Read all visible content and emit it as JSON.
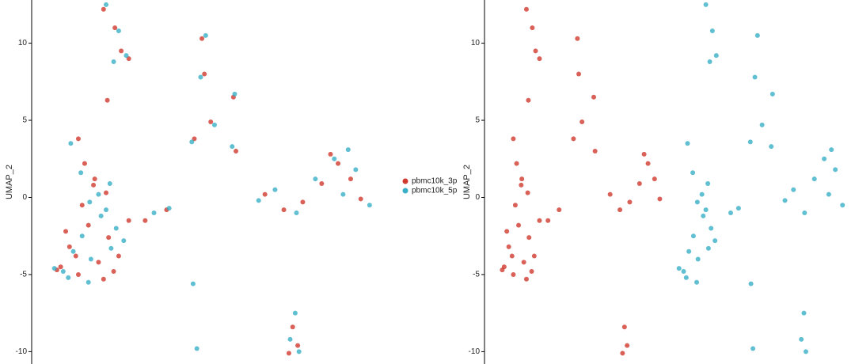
{
  "chart_data": {
    "type": "scatter",
    "y_label": "UMAP_2",
    "ylim": [
      -10.8,
      12.8
    ],
    "yticks": [
      -10,
      -5,
      0,
      5,
      10
    ],
    "xlim": [
      -15,
      12
    ],
    "legend": "right",
    "series": [
      {
        "name": "pbmc10k_3p",
        "color": "#d03a2e",
        "x": [
          -13.2,
          -12.5,
          -11.8,
          -11.0,
          -10.2,
          -9.4,
          -8.6,
          -7.8,
          -12.8,
          -11.5,
          -10.6,
          -9.8,
          -9.0,
          -13.5,
          -12.0,
          -11.8,
          -11.3,
          -10.5,
          -9.6,
          -4.8,
          -6.5,
          -9.8,
          -8.9,
          -8.4,
          -7.8,
          -9.5,
          -2.0,
          -1.8,
          0.5,
          0.7,
          -2.6,
          -1.3,
          3.0,
          4.5,
          6.0,
          7.5,
          8.8,
          9.8,
          10.6,
          8.2,
          5.2,
          5.6,
          4.9
        ],
        "y": [
          -4.5,
          -3.2,
          -5.0,
          -1.8,
          -4.2,
          -2.6,
          -3.8,
          -1.5,
          -2.2,
          -0.5,
          0.8,
          -5.3,
          -4.8,
          -4.7,
          -3.8,
          3.8,
          2.2,
          1.2,
          0.3,
          -0.8,
          -1.5,
          12.2,
          11.0,
          9.5,
          9.0,
          6.3,
          10.3,
          8.0,
          6.5,
          3.0,
          3.8,
          4.9,
          0.2,
          -0.8,
          -0.3,
          0.9,
          2.2,
          1.2,
          -0.1,
          2.8,
          -8.4,
          -9.6,
          -10.1
        ]
      },
      {
        "name": "pbmc10k_5p",
        "color": "#3aafc7",
        "x": [
          -13.0,
          -12.2,
          -11.5,
          -10.8,
          -10.0,
          -9.2,
          -8.2,
          -13.7,
          -12.6,
          -11.0,
          -10.2,
          -9.6,
          -8.8,
          -12.4,
          -11.6,
          -10.9,
          -9.3,
          -4.6,
          -5.8,
          -2.7,
          -9.6,
          -8.6,
          -8.0,
          -9.0,
          -1.7,
          -2.1,
          0.6,
          0.4,
          -2.8,
          -1.0,
          2.5,
          3.8,
          5.5,
          7.0,
          8.5,
          9.2,
          10.2,
          11.3,
          9.6,
          5.4,
          5.0,
          5.7,
          -2.4
        ],
        "y": [
          -4.8,
          -3.5,
          -2.5,
          -4.0,
          -1.2,
          -3.3,
          -2.8,
          -4.6,
          -5.2,
          -5.5,
          0.2,
          -0.8,
          -2.0,
          3.5,
          1.6,
          -0.3,
          0.9,
          -0.7,
          -1.0,
          -5.6,
          12.5,
          10.8,
          9.2,
          8.8,
          10.5,
          7.8,
          6.7,
          3.3,
          3.6,
          4.7,
          -0.2,
          0.5,
          -1.0,
          1.2,
          2.5,
          0.2,
          1.8,
          -0.5,
          3.1,
          -7.5,
          -9.2,
          -10.0,
          -9.8
        ]
      }
    ]
  }
}
